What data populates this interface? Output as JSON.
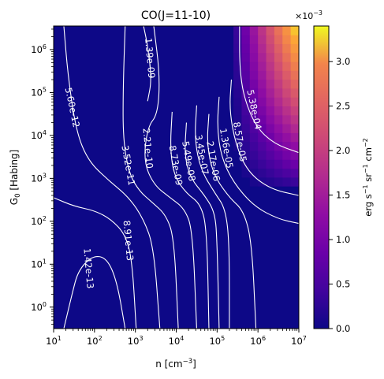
{
  "chart_data": {
    "type": "heatmap",
    "title": "CO(J=11-10)",
    "xlabel": "n [cm",
    "xlabel_sup": "−3",
    "xlabel_end": "]",
    "ylabel": "G",
    "ylabel_sub": "0",
    "ylabel_end": " [Habing]",
    "x_scale": "log",
    "y_scale": "log",
    "xlim": [
      1,
      7
    ],
    "ylim": [
      -0.5,
      6.55
    ],
    "x_ticks": [
      {
        "base": "10",
        "exp": "1",
        "value": 1
      },
      {
        "base": "10",
        "exp": "2",
        "value": 2
      },
      {
        "base": "10",
        "exp": "3",
        "value": 3
      },
      {
        "base": "10",
        "exp": "4",
        "value": 4
      },
      {
        "base": "10",
        "exp": "5",
        "value": 5
      },
      {
        "base": "10",
        "exp": "6",
        "value": 6
      },
      {
        "base": "10",
        "exp": "7",
        "value": 7
      }
    ],
    "y_ticks": [
      {
        "base": "10",
        "exp": "0",
        "value": 0
      },
      {
        "base": "10",
        "exp": "1",
        "value": 1
      },
      {
        "base": "10",
        "exp": "2",
        "value": 2
      },
      {
        "base": "10",
        "exp": "3",
        "value": 3
      },
      {
        "base": "10",
        "exp": "4",
        "value": 4
      },
      {
        "base": "10",
        "exp": "5",
        "value": 5
      },
      {
        "base": "10",
        "exp": "6",
        "value": 6
      }
    ],
    "colormap": "plasma",
    "colorbar": {
      "range": [
        0,
        3.4
      ],
      "ticks": [
        "0.0",
        "0.5",
        "1.0",
        "1.5",
        "2.0",
        "2.5",
        "3.0"
      ],
      "tick_values": [
        0,
        0.5,
        1,
        1.5,
        2,
        2.5,
        3
      ],
      "multiplier_base": "×10",
      "multiplier_exp": "−3",
      "label_parts": [
        "erg s",
        "−1",
        " sr",
        "−1",
        " cm",
        "−2"
      ]
    },
    "contours": [
      {
        "label": "1.42e-13",
        "label_at": [
          1.85,
          0.9
        ],
        "angle": 85,
        "points": [
          [
            1.25,
            -0.5
          ],
          [
            1.45,
            0.3
          ],
          [
            1.6,
            0.85
          ],
          [
            1.95,
            1.2
          ],
          [
            2.3,
            1.15
          ],
          [
            2.55,
            0.6
          ],
          [
            2.75,
            -0.5
          ]
        ]
      },
      {
        "label": "8.91e-13",
        "label_at": [
          2.82,
          1.55
        ],
        "angle": 85,
        "points": [
          [
            1.0,
            2.55
          ],
          [
            1.5,
            2.35
          ],
          [
            2.0,
            2.25
          ],
          [
            2.4,
            2.05
          ],
          [
            2.75,
            1.7
          ],
          [
            2.92,
            1.1
          ],
          [
            3.02,
            -0.5
          ]
        ]
      },
      {
        "label": "5.60e-12",
        "label_at": [
          1.45,
          4.65
        ],
        "angle": 78,
        "points": [
          [
            1.25,
            6.55
          ],
          [
            1.35,
            5.4
          ],
          [
            1.55,
            4.1
          ],
          [
            1.85,
            3.4
          ],
          [
            2.35,
            2.95
          ],
          [
            2.85,
            2.55
          ],
          [
            3.2,
            2.05
          ],
          [
            3.45,
            1.4
          ],
          [
            3.6,
            -0.5
          ]
        ]
      },
      {
        "label": "3.52e-11",
        "label_at": [
          2.82,
          3.3
        ],
        "angle": 80,
        "points": [
          [
            2.75,
            6.55
          ],
          [
            2.7,
            5.1
          ],
          [
            2.7,
            3.9
          ],
          [
            2.85,
            3.1
          ],
          [
            3.1,
            2.7
          ],
          [
            3.4,
            2.45
          ],
          [
            3.75,
            2.15
          ],
          [
            3.95,
            1.6
          ],
          [
            4.05,
            -0.5
          ]
        ]
      },
      {
        "label": "1.39e-09",
        "label_at": [
          3.35,
          5.8
        ],
        "angle": 85,
        "points": [
          [
            3.2,
            6.55
          ],
          [
            3.3,
            6.1
          ],
          [
            3.4,
            5.3
          ],
          [
            3.3,
            4.8
          ]
        ]
      },
      {
        "label": "2.21e-10",
        "label_at": [
          3.3,
          3.7
        ],
        "angle": 85,
        "points": [
          [
            3.45,
            6.55
          ],
          [
            3.6,
            5.4
          ],
          [
            3.55,
            4.5
          ],
          [
            3.3,
            4.2
          ],
          [
            3.2,
            3.4
          ],
          [
            3.45,
            2.85
          ],
          [
            3.85,
            2.55
          ],
          [
            4.2,
            2.3
          ],
          [
            4.4,
            1.8
          ],
          [
            4.5,
            -0.5
          ]
        ]
      },
      {
        "label": "8.73e-09",
        "label_at": [
          3.98,
          3.3
        ],
        "angle": 80,
        "points": [
          [
            3.9,
            4.55
          ],
          [
            3.85,
            3.7
          ],
          [
            3.95,
            3.05
          ],
          [
            4.25,
            2.65
          ],
          [
            4.6,
            2.4
          ],
          [
            4.75,
            1.8
          ],
          [
            4.8,
            -0.5
          ]
        ]
      },
      {
        "label": "5.49e-08",
        "label_at": [
          4.3,
          3.4
        ],
        "angle": 80,
        "points": [
          [
            4.25,
            4.3
          ],
          [
            4.2,
            3.55
          ],
          [
            4.35,
            3.0
          ],
          [
            4.7,
            2.6
          ],
          [
            4.95,
            2.2
          ],
          [
            5.0,
            1.5
          ],
          [
            5.05,
            -0.5
          ]
        ]
      },
      {
        "label": "3.45e-07",
        "label_at": [
          4.62,
          3.55
        ],
        "angle": 80,
        "points": [
          [
            4.5,
            4.7
          ],
          [
            4.45,
            3.9
          ],
          [
            4.6,
            3.2
          ],
          [
            4.95,
            2.65
          ],
          [
            5.2,
            2.3
          ],
          [
            5.3,
            1.5
          ],
          [
            5.3,
            -0.5
          ]
        ]
      },
      {
        "label": "2.17e-06",
        "label_at": [
          4.9,
          3.4
        ],
        "angle": 80,
        "points": [
          [
            4.8,
            4.5
          ],
          [
            4.75,
            3.8
          ],
          [
            4.9,
            3.1
          ],
          [
            5.3,
            2.55
          ],
          [
            5.65,
            2.25
          ],
          [
            5.85,
            1.5
          ],
          [
            5.95,
            -0.5
          ]
        ]
      },
      {
        "label": "1.36e-05",
        "label_at": [
          5.22,
          3.7
        ],
        "angle": 80,
        "points": [
          [
            5.05,
            4.9
          ],
          [
            5.0,
            4.2
          ],
          [
            5.1,
            3.5
          ],
          [
            5.4,
            2.9
          ],
          [
            5.9,
            2.35
          ],
          [
            6.5,
            2.05
          ],
          [
            7.0,
            1.95
          ]
        ]
      },
      {
        "label": "8.57e-05",
        "label_at": [
          5.55,
          3.85
        ],
        "angle": 80,
        "points": [
          [
            5.35,
            5.3
          ],
          [
            5.3,
            4.6
          ],
          [
            5.45,
            3.8
          ],
          [
            5.75,
            3.15
          ],
          [
            6.3,
            2.75
          ],
          [
            7.0,
            2.6
          ]
        ]
      },
      {
        "label": "5.38e-04",
        "label_at": [
          5.9,
          4.6
        ],
        "angle": 78,
        "points": [
          [
            5.55,
            6.55
          ],
          [
            5.55,
            5.6
          ],
          [
            5.65,
            4.9
          ],
          [
            5.95,
            4.2
          ],
          [
            6.4,
            3.8
          ],
          [
            7.0,
            3.6
          ]
        ]
      }
    ]
  }
}
